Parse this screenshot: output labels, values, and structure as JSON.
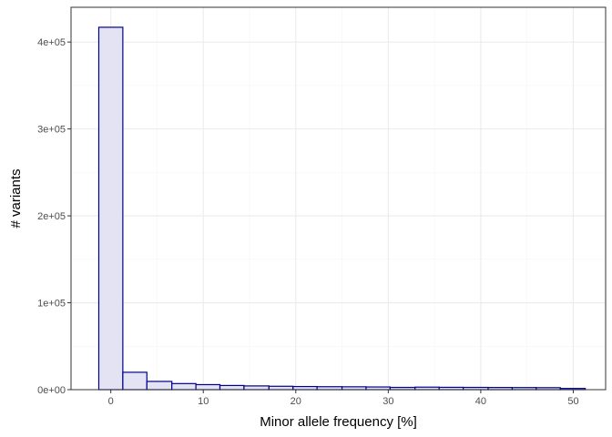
{
  "chart_data": {
    "type": "bar",
    "histogram": true,
    "title": "",
    "xlabel": "Minor allele frequency [%]",
    "ylabel": "# variants",
    "xlim": [
      -4.3,
      53.5
    ],
    "ylim": [
      0,
      440000
    ],
    "x_ticks": [
      0,
      10,
      20,
      30,
      40,
      50
    ],
    "x_tick_labels": [
      "0",
      "10",
      "20",
      "30",
      "40",
      "50"
    ],
    "y_ticks": [
      0,
      100000,
      200000,
      300000,
      400000
    ],
    "y_tick_labels": [
      "0e+00",
      "1e+05",
      "2e+05",
      "3e+05",
      "4e+05"
    ],
    "grid": true,
    "legend": "none",
    "bin_width": 2.63,
    "bins": [
      {
        "x0": -1.3,
        "x1": 1.3,
        "count": 417000
      },
      {
        "x0": 1.3,
        "x1": 3.9,
        "count": 20000
      },
      {
        "x0": 3.9,
        "x1": 6.6,
        "count": 9500
      },
      {
        "x0": 6.6,
        "x1": 9.2,
        "count": 7000
      },
      {
        "x0": 9.2,
        "x1": 11.8,
        "count": 5800
      },
      {
        "x0": 11.8,
        "x1": 14.4,
        "count": 4800
      },
      {
        "x0": 14.4,
        "x1": 17.1,
        "count": 4300
      },
      {
        "x0": 17.1,
        "x1": 19.7,
        "count": 3900
      },
      {
        "x0": 19.7,
        "x1": 22.3,
        "count": 3600
      },
      {
        "x0": 22.3,
        "x1": 25.0,
        "count": 3400
      },
      {
        "x0": 25.0,
        "x1": 27.6,
        "count": 3300
      },
      {
        "x0": 27.6,
        "x1": 30.2,
        "count": 3100
      },
      {
        "x0": 30.2,
        "x1": 32.9,
        "count": 2600
      },
      {
        "x0": 32.9,
        "x1": 35.5,
        "count": 2900
      },
      {
        "x0": 35.5,
        "x1": 38.1,
        "count": 2700
      },
      {
        "x0": 38.1,
        "x1": 40.8,
        "count": 2600
      },
      {
        "x0": 40.8,
        "x1": 43.4,
        "count": 2500
      },
      {
        "x0": 43.4,
        "x1": 46.0,
        "count": 2400
      },
      {
        "x0": 46.0,
        "x1": 48.6,
        "count": 2300
      },
      {
        "x0": 48.6,
        "x1": 51.3,
        "count": 1400
      }
    ],
    "colors": {
      "bar_fill": "#e3e3f3",
      "bar_stroke": "#00008b",
      "grid_major": "#ebebeb",
      "grid_minor": "#f5f5f5",
      "panel_border": "#333333"
    }
  }
}
